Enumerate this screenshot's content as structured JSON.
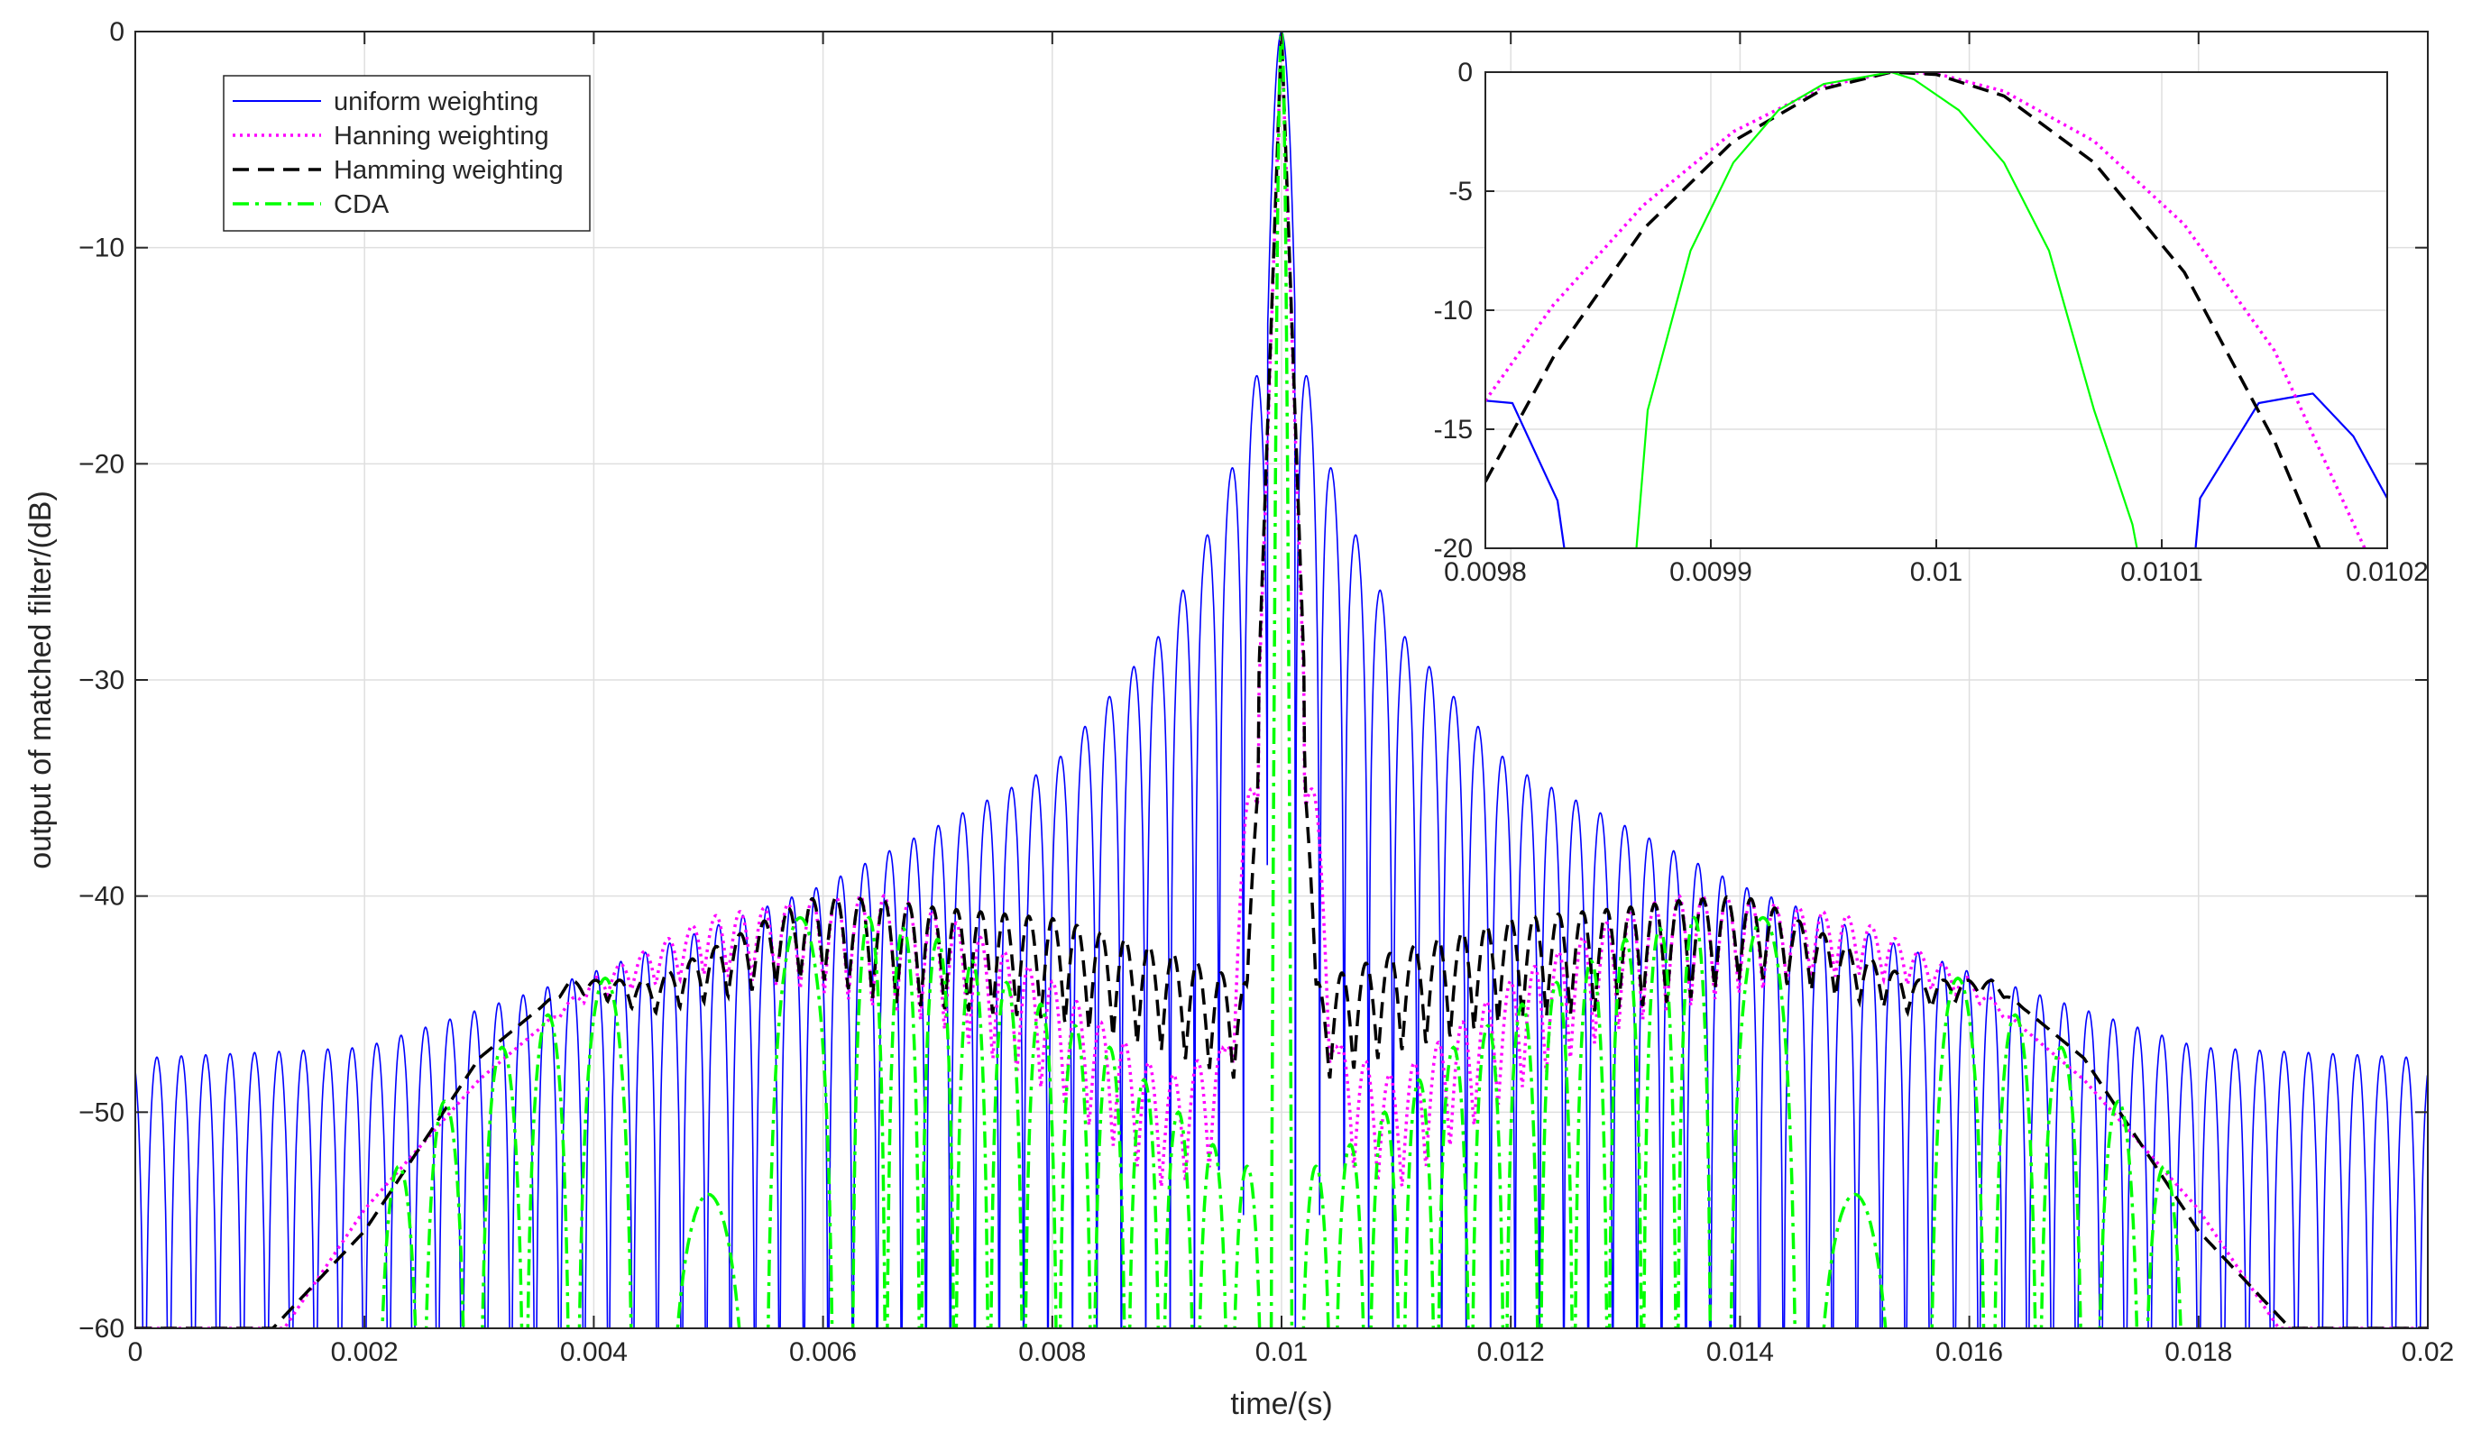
{
  "chart_data": [
    {
      "type": "line",
      "title": "",
      "xlabel": "time/(s)",
      "ylabel": "output of matched filter/(dB)",
      "xlim": [
        0,
        0.02
      ],
      "ylim": [
        -60,
        0
      ],
      "xticks": [
        0,
        0.002,
        0.004,
        0.006,
        0.008,
        0.01,
        0.012,
        0.014,
        0.016,
        0.018,
        0.02
      ],
      "xtick_labels": [
        "0",
        "0.002",
        "0.004",
        "0.006",
        "0.008",
        "0.01",
        "0.012",
        "0.014",
        "0.016",
        "0.018",
        "0.02"
      ],
      "yticks": [
        -60,
        -50,
        -40,
        -30,
        -20,
        -10,
        0
      ],
      "ytick_labels": [
        "−60",
        "−50",
        "−40",
        "−30",
        "−20",
        "−10",
        "0"
      ],
      "grid": true,
      "legend_position": "top-left",
      "series": [
        {
          "name": "uniform weighting",
          "color": "#0000ff",
          "style": "solid",
          "sidelobe_nulls_spacing_s": 0.000213,
          "peak_envelope": {
            "x": [
              0,
              0.002,
              0.004,
              0.006,
              0.008,
              0.009,
              0.0095,
              0.0099,
              0.01
            ],
            "y": [
              -47.5,
              -47.0,
              -43.5,
              -39.5,
              -34.0,
              -27.5,
              -21.5,
              -13.5,
              0
            ]
          }
        },
        {
          "name": "Hanning weighting",
          "color": "#ff00ff",
          "style": "dotted",
          "curve": {
            "x": [
              0.0013,
              0.002,
              0.003,
              0.004,
              0.005,
              0.006,
              0.0065,
              0.007,
              0.008,
              0.009,
              0.0095,
              0.0098,
              0.01
            ],
            "y": [
              -60,
              -54.5,
              -48.5,
              -44.0,
              -41.5,
              -41.0,
              -41.0,
              -41.8,
              -45.0,
              -49.5,
              -48.0,
              -31.0,
              0
            ]
          }
        },
        {
          "name": "Hamming weighting",
          "color": "#000000",
          "style": "dashed",
          "curve": {
            "x": [
              0.0012,
              0.002,
              0.003,
              0.0038,
              0.0045,
              0.005,
              0.0058,
              0.006,
              0.007,
              0.008,
              0.009,
              0.0097,
              0.01
            ],
            "y": [
              -60,
              -55.5,
              -47.5,
              -44.0,
              -44.2,
              -43.0,
              -41.0,
              -40.8,
              -41.5,
              -42.0,
              -43.5,
              -45.0,
              0
            ]
          }
        },
        {
          "name": "CDA",
          "color": "#00ff00",
          "style": "dash-dot",
          "lobes": [
            {
              "x": 0.0023,
              "y": -52.5
            },
            {
              "x": 0.0027,
              "y": -49.5
            },
            {
              "x": 0.0032,
              "y": -47.0
            },
            {
              "x": 0.0036,
              "y": -45.5
            },
            {
              "x": 0.0041,
              "y": -43.8
            },
            {
              "x": 0.005,
              "y": -53.8
            },
            {
              "x": 0.0058,
              "y": -41.0
            },
            {
              "x": 0.0064,
              "y": -41.0
            },
            {
              "x": 0.0067,
              "y": -41.5
            },
            {
              "x": 0.007,
              "y": -42.0
            },
            {
              "x": 0.0073,
              "y": -43.0
            },
            {
              "x": 0.0076,
              "y": -44.0
            },
            {
              "x": 0.0079,
              "y": -45.0
            },
            {
              "x": 0.0082,
              "y": -46.0
            },
            {
              "x": 0.0085,
              "y": -47.0
            },
            {
              "x": 0.0088,
              "y": -48.5
            },
            {
              "x": 0.0091,
              "y": -50.0
            },
            {
              "x": 0.0094,
              "y": -51.5
            },
            {
              "x": 0.0097,
              "y": -52.5
            }
          ]
        }
      ]
    },
    {
      "type": "line",
      "title": "",
      "xlabel": "",
      "ylabel": "",
      "xlim": [
        0.0098,
        0.0102
      ],
      "ylim": [
        -20,
        0
      ],
      "xticks": [
        0.0098,
        0.0099,
        0.01,
        0.0101,
        0.0102
      ],
      "xtick_labels": [
        "0.0098",
        "0.0099",
        "0.01",
        "0.0101",
        "0.0102"
      ],
      "yticks": [
        -20,
        -15,
        -10,
        -5,
        0
      ],
      "ytick_labels": [
        "-20",
        "-15",
        "-10",
        "-5",
        "0"
      ],
      "grid": true,
      "series": [
        {
          "name": "uniform weighting",
          "color": "#0000ff",
          "style": "solid",
          "segments": [
            {
              "x": [
                0.0098,
                0.009812,
                0.009832,
                0.009835
              ],
              "y": [
                -13.8,
                -13.9,
                -18.0,
                -20
              ]
            },
            {
              "x": [
                0.010115,
                0.010117,
                0.010143,
                0.010167,
                0.010185,
                0.0102
              ],
              "y": [
                -20,
                -17.9,
                -13.9,
                -13.5,
                -15.3,
                -17.9
              ]
            }
          ]
        },
        {
          "name": "Hanning weighting",
          "color": "#ff00ff",
          "style": "dotted",
          "x": [
            0.0098,
            0.00983,
            0.00987,
            0.00991,
            0.00995,
            0.00998,
            0.01,
            0.01003,
            0.01007,
            0.01011,
            0.01015,
            0.01019
          ],
          "y": [
            -13.8,
            -9.8,
            -5.6,
            -2.5,
            -0.6,
            0,
            -0.06,
            -0.8,
            -2.9,
            -6.4,
            -11.7,
            -20
          ]
        },
        {
          "name": "Hamming weighting",
          "color": "#000000",
          "style": "dashed",
          "x": [
            0.0098,
            0.00983,
            0.00987,
            0.00991,
            0.00995,
            0.00998,
            0.01,
            0.01003,
            0.01007,
            0.01011,
            0.01015,
            0.01017
          ],
          "y": [
            -17.2,
            -12.0,
            -6.6,
            -2.9,
            -0.7,
            0,
            -0.1,
            -1.0,
            -3.8,
            -8.4,
            -15.5,
            -20
          ]
        },
        {
          "name": "CDA",
          "color": "#00ff00",
          "style": "solid",
          "x": [
            0.009867,
            0.009872,
            0.009891,
            0.00991,
            0.00993,
            0.00995,
            0.00998,
            0.00999,
            0.01001,
            0.01003,
            0.01005,
            0.01007,
            0.01008,
            0.010087,
            0.010089
          ],
          "y": [
            -20,
            -14.2,
            -7.5,
            -3.8,
            -1.6,
            -0.5,
            0,
            -0.3,
            -1.6,
            -3.8,
            -7.5,
            -14.2,
            -17.0,
            -19.0,
            -20
          ]
        }
      ]
    }
  ]
}
